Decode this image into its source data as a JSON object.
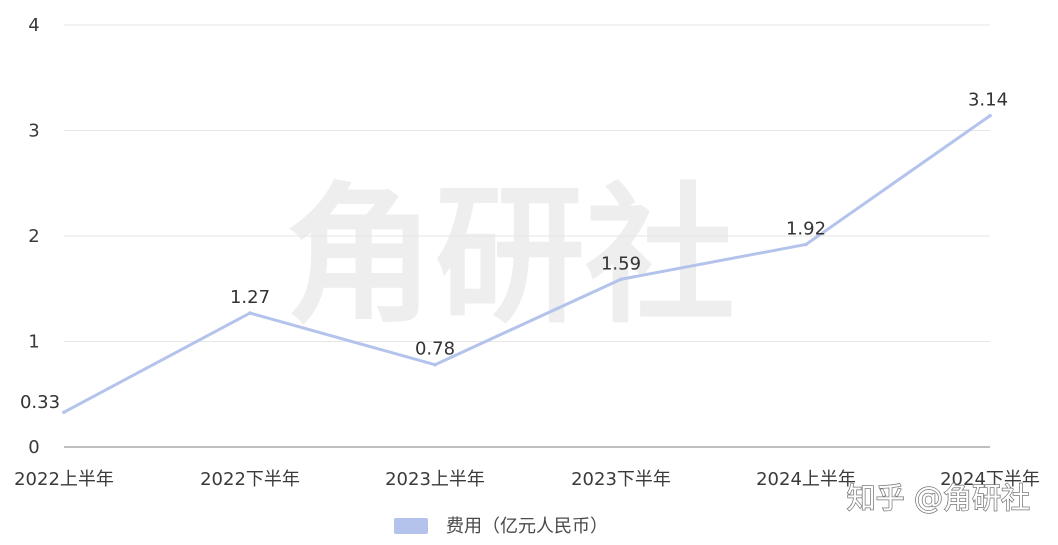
{
  "chart_data": {
    "type": "line",
    "categories": [
      "2022上半年",
      "2022下半年",
      "2023上半年",
      "2023下半年",
      "2024上半年",
      "2024下半年"
    ],
    "series": [
      {
        "name": "费用（亿元人民币）",
        "values": [
          0.33,
          1.27,
          0.78,
          1.59,
          1.92,
          3.14
        ],
        "color": "#b4c3ec"
      }
    ],
    "data_labels": [
      "0.33",
      "1.27",
      "0.78",
      "1.59",
      "1.92",
      "3.14"
    ],
    "y_ticks": [
      "0",
      "1",
      "2",
      "3",
      "4"
    ],
    "ylim": [
      0,
      4
    ],
    "grid": true,
    "legend_position": "bottom-center",
    "title": "",
    "xlabel": "",
    "ylabel": ""
  },
  "watermark": {
    "text": "角研社"
  },
  "source_mark": {
    "text": "知乎 @角研社"
  }
}
